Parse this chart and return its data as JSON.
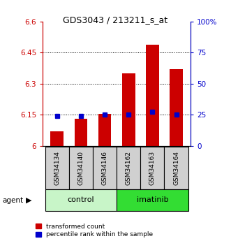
{
  "title": "GDS3043 / 213211_s_at",
  "samples": [
    "GSM34134",
    "GSM34140",
    "GSM34146",
    "GSM34162",
    "GSM34163",
    "GSM34164"
  ],
  "red_values": [
    6.07,
    6.13,
    6.155,
    6.35,
    6.49,
    6.37
  ],
  "blue_values": [
    6.145,
    6.145,
    6.15,
    6.15,
    6.163,
    6.15
  ],
  "ymin": 6.0,
  "ymax": 6.6,
  "yticks": [
    6.0,
    6.15,
    6.3,
    6.45,
    6.6
  ],
  "ytick_labels": [
    "6",
    "6.15",
    "6.3",
    "6.45",
    "6.6"
  ],
  "right_yticks": [
    0,
    25,
    50,
    75,
    100
  ],
  "right_ytick_labels": [
    "0",
    "25",
    "50",
    "75",
    "100%"
  ],
  "groups": [
    {
      "label": "control",
      "indices": [
        0,
        1,
        2
      ],
      "color": "#c8f5c8"
    },
    {
      "label": "imatinib",
      "indices": [
        3,
        4,
        5
      ],
      "color": "#33dd33"
    }
  ],
  "bar_color": "#cc0000",
  "blue_color": "#0000cc",
  "bar_width": 0.55,
  "agent_label": "agent",
  "legend_red": "transformed count",
  "legend_blue": "percentile rank within the sample",
  "left_axis_color": "#cc0000",
  "right_axis_color": "#0000cc",
  "sample_box_color": "#d0d0d0"
}
